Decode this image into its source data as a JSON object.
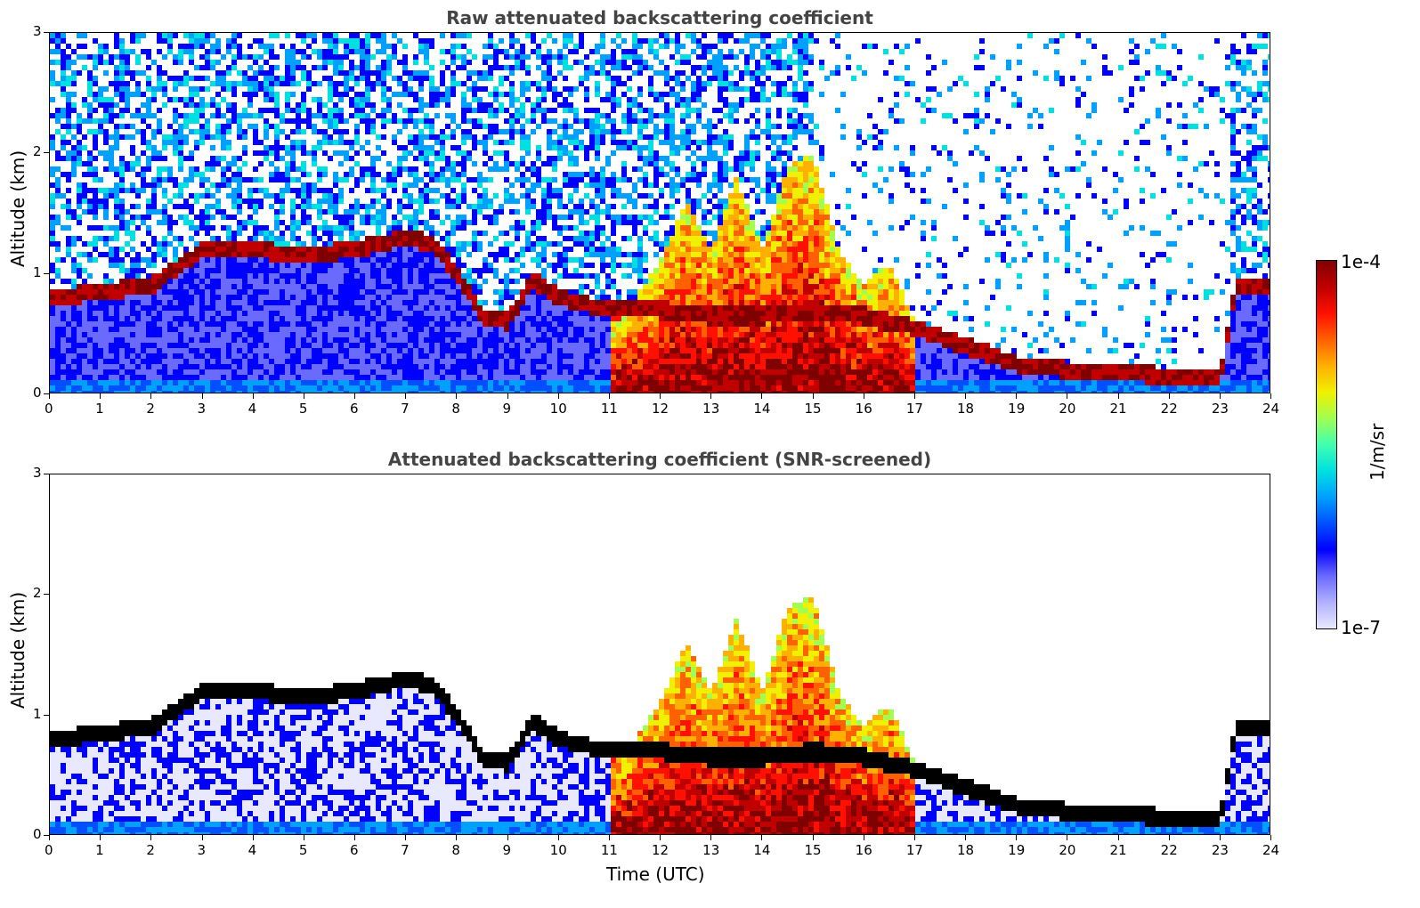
{
  "chart_data": [
    {
      "type": "heatmap",
      "title": "Raw attenuated backscattering coefficient",
      "xlabel": "",
      "ylabel": "Altitude (km)",
      "xlim": [
        0,
        24
      ],
      "ylim": [
        0,
        3
      ],
      "x_ticks": [
        "0",
        "1",
        "2",
        "3",
        "4",
        "5",
        "6",
        "7",
        "8",
        "9",
        "10",
        "11",
        "12",
        "13",
        "14",
        "15",
        "16",
        "17",
        "18",
        "19",
        "20",
        "21",
        "22",
        "23",
        "24"
      ],
      "y_ticks": [
        "0",
        "1",
        "2",
        "3"
      ],
      "grid": false,
      "layers": {
        "cloud_layer_altitude_km": [
          [
            0,
            0.8
          ],
          [
            1,
            0.85
          ],
          [
            2,
            0.9
          ],
          [
            3,
            1.2
          ],
          [
            4,
            1.2
          ],
          [
            5,
            1.15
          ],
          [
            6,
            1.2
          ],
          [
            7,
            1.3
          ],
          [
            7.5,
            1.25
          ],
          [
            8,
            1.0
          ],
          [
            8.5,
            0.65
          ],
          [
            9,
            0.6
          ],
          [
            9.5,
            0.95
          ],
          [
            10,
            0.8
          ],
          [
            11,
            0.7
          ],
          [
            12,
            0.7
          ],
          [
            13,
            0.65
          ],
          [
            14,
            0.65
          ],
          [
            15,
            0.7
          ],
          [
            16,
            0.65
          ],
          [
            17,
            0.55
          ],
          [
            18,
            0.4
          ],
          [
            19,
            0.25
          ],
          [
            20,
            0.2
          ],
          [
            21,
            0.18
          ],
          [
            22,
            0.15
          ],
          [
            23,
            0.15
          ],
          [
            23.3,
            0.9
          ],
          [
            24,
            0.9
          ]
        ],
        "convective_plume_top_km": [
          [
            11,
            0.5
          ],
          [
            12,
            1.1
          ],
          [
            12.5,
            1.6
          ],
          [
            13,
            1.2
          ],
          [
            13.5,
            1.8
          ],
          [
            14,
            1.2
          ],
          [
            14.5,
            1.9
          ],
          [
            15,
            2.0
          ],
          [
            15.5,
            1.2
          ],
          [
            16,
            0.9
          ],
          [
            16.5,
            1.1
          ],
          [
            17,
            0.6
          ]
        ]
      }
    },
    {
      "type": "heatmap",
      "title": "Attenuated backscattering coefficient (SNR-screened)",
      "xlabel": "Time (UTC)",
      "ylabel": "Altitude (km)",
      "xlim": [
        0,
        24
      ],
      "ylim": [
        0,
        3
      ],
      "x_ticks": [
        "0",
        "1",
        "2",
        "3",
        "4",
        "5",
        "6",
        "7",
        "8",
        "9",
        "10",
        "11",
        "12",
        "13",
        "14",
        "15",
        "16",
        "17",
        "18",
        "19",
        "20",
        "21",
        "22",
        "23",
        "24"
      ],
      "y_ticks": [
        "0",
        "1",
        "2",
        "3"
      ],
      "grid": false
    }
  ],
  "colorbar": {
    "label": "1/m/sr",
    "max_label": "1e-4",
    "min_label": "1e-7",
    "colors": [
      "#e8e8ff",
      "#b0b0ff",
      "#6a6aff",
      "#0000ff",
      "#0050ff",
      "#00a0ff",
      "#00e0e0",
      "#40ffb0",
      "#a0ff50",
      "#f0f000",
      "#ffb000",
      "#ff6000",
      "#ff1000",
      "#c00000",
      "#800000"
    ]
  }
}
